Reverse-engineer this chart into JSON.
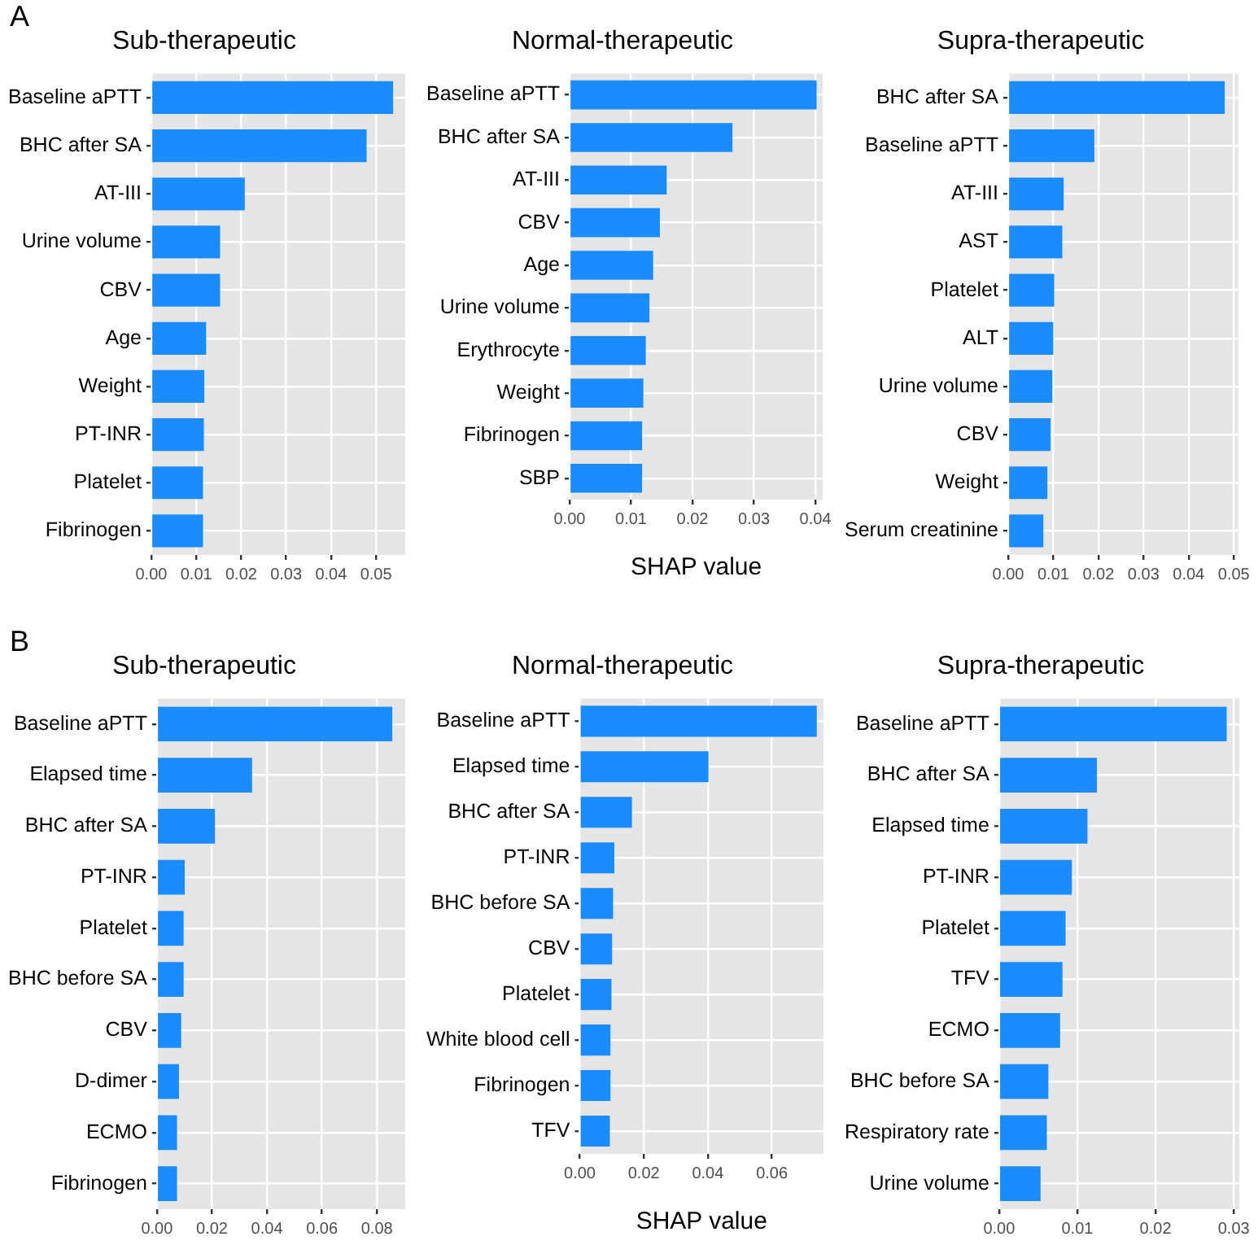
{
  "chart_data": [
    {
      "type": "bar",
      "orientation": "horizontal",
      "title": "Sub-therapeutic",
      "annotations": [
        "A"
      ],
      "categories": [
        "Baseline aPTT",
        "BHC after SA",
        "AT-III",
        "Urine volume",
        "CBV",
        "Age",
        "Weight",
        "PT-INR",
        "Platelet",
        "Fibrinogen"
      ],
      "values": [
        0.0538,
        0.0479,
        0.0208,
        0.0153,
        0.0153,
        0.0122,
        0.0118,
        0.0117,
        0.0115,
        0.0115
      ],
      "color": "#1a8cff",
      "xlim": [
        0,
        0.0565
      ],
      "xticks": [
        {
          "value": 0,
          "label": "0.00"
        },
        {
          "value": 0.01,
          "label": "0.01"
        },
        {
          "value": 0.02,
          "label": "0.02"
        },
        {
          "value": 0.03,
          "label": "0.03"
        },
        {
          "value": 0.04,
          "label": "0.04"
        },
        {
          "value": 0.05,
          "label": "0.05"
        }
      ],
      "grid": true,
      "legend": false
    },
    {
      "type": "bar",
      "orientation": "horizontal",
      "title": "Normal-therapeutic",
      "xlabel": "SHAP value",
      "categories": [
        "Baseline aPTT",
        "BHC after SA",
        "AT-III",
        "CBV",
        "Age",
        "Urine volume",
        "Erythrocyte",
        "Weight",
        "Fibrinogen",
        "SBP"
      ],
      "values": [
        0.0402,
        0.0265,
        0.0158,
        0.0147,
        0.0136,
        0.013,
        0.0124,
        0.012,
        0.0118,
        0.0118
      ],
      "color": "#1a8cff",
      "xlim": [
        0,
        0.0412
      ],
      "xticks": [
        {
          "value": 0,
          "label": "0.00"
        },
        {
          "value": 0.01,
          "label": "0.01"
        },
        {
          "value": 0.02,
          "label": "0.02"
        },
        {
          "value": 0.03,
          "label": "0.03"
        },
        {
          "value": 0.04,
          "label": "0.04"
        }
      ],
      "grid": true,
      "legend": false
    },
    {
      "type": "bar",
      "orientation": "horizontal",
      "title": "Supra-therapeutic",
      "categories": [
        "BHC after SA",
        "Baseline aPTT",
        "AT-III",
        "AST",
        "Platelet",
        "ALT",
        "Urine volume",
        "CBV",
        "Weight",
        "Serum creatinine"
      ],
      "values": [
        0.048,
        0.0191,
        0.0123,
        0.012,
        0.0102,
        0.01,
        0.0098,
        0.0094,
        0.0087,
        0.0078
      ],
      "color": "#1a8cff",
      "xlim": [
        0,
        0.051
      ],
      "xticks": [
        {
          "value": 0,
          "label": "0.00"
        },
        {
          "value": 0.01,
          "label": "0.01"
        },
        {
          "value": 0.02,
          "label": "0.02"
        },
        {
          "value": 0.03,
          "label": "0.03"
        },
        {
          "value": 0.04,
          "label": "0.04"
        },
        {
          "value": 0.05,
          "label": "0.05"
        }
      ],
      "grid": true,
      "legend": false
    },
    {
      "type": "bar",
      "orientation": "horizontal",
      "title": "Sub-therapeutic",
      "annotations": [
        "B"
      ],
      "categories": [
        "Baseline aPTT",
        "Elapsed time",
        "BHC after SA",
        "PT-INR",
        "Platelet",
        "BHC before SA",
        "CBV",
        "D-dimer",
        "ECMO",
        "Fibrinogen"
      ],
      "values": [
        0.0856,
        0.0346,
        0.0211,
        0.0101,
        0.0097,
        0.0097,
        0.0088,
        0.008,
        0.0073,
        0.0073
      ],
      "color": "#1a8cff",
      "xlim": [
        0,
        0.0903
      ],
      "xticks": [
        {
          "value": 0,
          "label": "0.00"
        },
        {
          "value": 0.02,
          "label": "0.02"
        },
        {
          "value": 0.04,
          "label": "0.04"
        },
        {
          "value": 0.06,
          "label": "0.06"
        },
        {
          "value": 0.08,
          "label": "0.08"
        }
      ],
      "grid": true,
      "legend": false
    },
    {
      "type": "bar",
      "orientation": "horizontal",
      "title": "Normal-therapeutic",
      "xlabel": "SHAP value",
      "categories": [
        "Baseline aPTT",
        "Elapsed time",
        "BHC after SA",
        "PT-INR",
        "BHC before SA",
        "CBV",
        "Platelet",
        "White blood cell",
        "Fibrinogen",
        "TFV"
      ],
      "values": [
        0.074,
        0.0402,
        0.0163,
        0.0108,
        0.0104,
        0.0101,
        0.0099,
        0.0096,
        0.0096,
        0.0094
      ],
      "color": "#1a8cff",
      "xlim": [
        0,
        0.0761
      ],
      "xticks": [
        {
          "value": 0,
          "label": "0.00"
        },
        {
          "value": 0.02,
          "label": "0.02"
        },
        {
          "value": 0.04,
          "label": "0.04"
        },
        {
          "value": 0.06,
          "label": "0.06"
        }
      ],
      "grid": true,
      "legend": false
    },
    {
      "type": "bar",
      "orientation": "horizontal",
      "title": "Supra-therapeutic",
      "categories": [
        "Baseline aPTT",
        "BHC after SA",
        "Elapsed time",
        "PT-INR",
        "Platelet",
        "TFV",
        "ECMO",
        "BHC before SA",
        "Respiratory rate",
        "Urine volume"
      ],
      "values": [
        0.0291,
        0.0125,
        0.0113,
        0.0093,
        0.0085,
        0.0081,
        0.0078,
        0.0063,
        0.0061,
        0.0053
      ],
      "color": "#1a8cff",
      "xlim": [
        0,
        0.0307
      ],
      "xticks": [
        {
          "value": 0,
          "label": "0.00"
        },
        {
          "value": 0.01,
          "label": "0.01"
        },
        {
          "value": 0.02,
          "label": "0.02"
        },
        {
          "value": 0.03,
          "label": "0.03"
        }
      ],
      "grid": true,
      "legend": false
    }
  ]
}
